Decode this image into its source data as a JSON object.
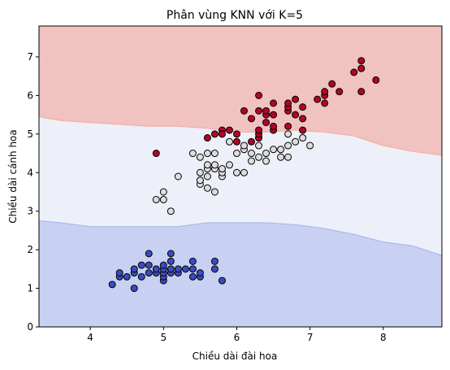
{
  "chart_data": {
    "type": "scatter",
    "title": "Phân vùng KNN với K=5",
    "xlabel": "Chiều dài đài hoa",
    "ylabel": "Chiều dài cánh hoa",
    "xlim": [
      3.3,
      8.8
    ],
    "ylim": [
      0,
      7.8
    ],
    "x_ticks": [
      4,
      5,
      6,
      7,
      8
    ],
    "y_ticks": [
      0,
      1,
      2,
      3,
      4,
      5,
      6,
      7
    ],
    "grid": false,
    "legend": "none",
    "background_regions": {
      "description_colors": {
        "class0": "#c8d1f2",
        "class1": "#edf0f8",
        "class2": "#f0c2c0"
      },
      "boundary_low_high": [
        {
          "x": 3.3,
          "low": 2.75,
          "high": 5.45
        },
        {
          "x": 3.6,
          "low": 2.7,
          "high": 5.35
        },
        {
          "x": 4.0,
          "low": 2.6,
          "high": 5.3
        },
        {
          "x": 4.4,
          "low": 2.6,
          "high": 5.25
        },
        {
          "x": 4.8,
          "low": 2.6,
          "high": 5.2
        },
        {
          "x": 5.2,
          "low": 2.6,
          "high": 5.2
        },
        {
          "x": 5.6,
          "low": 2.7,
          "high": 5.15
        },
        {
          "x": 6.0,
          "low": 2.7,
          "high": 5.05
        },
        {
          "x": 6.4,
          "low": 2.7,
          "high": 5.05
        },
        {
          "x": 6.8,
          "low": 2.65,
          "high": 5.1
        },
        {
          "x": 7.2,
          "low": 2.55,
          "high": 5.05
        },
        {
          "x": 7.6,
          "low": 2.4,
          "high": 4.95
        },
        {
          "x": 8.0,
          "low": 2.2,
          "high": 4.7
        },
        {
          "x": 8.4,
          "low": 2.1,
          "high": 4.55
        },
        {
          "x": 8.8,
          "low": 1.85,
          "high": 4.45
        }
      ]
    },
    "series": [
      {
        "class": 0,
        "color": "#3b4cc0",
        "points": [
          [
            4.3,
            1.1
          ],
          [
            4.4,
            1.3
          ],
          [
            4.4,
            1.4
          ],
          [
            4.5,
            1.3
          ],
          [
            4.6,
            1.0
          ],
          [
            4.6,
            1.4
          ],
          [
            4.6,
            1.5
          ],
          [
            4.7,
            1.3
          ],
          [
            4.7,
            1.6
          ],
          [
            4.8,
            1.4
          ],
          [
            4.8,
            1.6
          ],
          [
            4.8,
            1.9
          ],
          [
            4.9,
            1.4
          ],
          [
            4.9,
            1.5
          ],
          [
            5.0,
            1.2
          ],
          [
            5.0,
            1.3
          ],
          [
            5.0,
            1.4
          ],
          [
            5.0,
            1.5
          ],
          [
            5.0,
            1.6
          ],
          [
            5.1,
            1.4
          ],
          [
            5.1,
            1.5
          ],
          [
            5.1,
            1.7
          ],
          [
            5.1,
            1.9
          ],
          [
            5.2,
            1.4
          ],
          [
            5.2,
            1.5
          ],
          [
            5.3,
            1.5
          ],
          [
            5.4,
            1.3
          ],
          [
            5.4,
            1.5
          ],
          [
            5.4,
            1.7
          ],
          [
            5.5,
            1.3
          ],
          [
            5.5,
            1.4
          ],
          [
            5.7,
            1.5
          ],
          [
            5.7,
            1.7
          ],
          [
            5.8,
            1.2
          ]
        ]
      },
      {
        "class": 1,
        "color": "#dddddd",
        "points": [
          [
            4.9,
            3.3
          ],
          [
            5.0,
            3.3
          ],
          [
            5.0,
            3.5
          ],
          [
            5.1,
            3.0
          ],
          [
            5.2,
            3.9
          ],
          [
            5.4,
            4.5
          ],
          [
            5.5,
            3.7
          ],
          [
            5.5,
            3.8
          ],
          [
            5.5,
            4.0
          ],
          [
            5.5,
            4.4
          ],
          [
            5.6,
            3.6
          ],
          [
            5.6,
            3.9
          ],
          [
            5.6,
            4.1
          ],
          [
            5.6,
            4.2
          ],
          [
            5.6,
            4.5
          ],
          [
            5.7,
            3.5
          ],
          [
            5.7,
            4.1
          ],
          [
            5.7,
            4.2
          ],
          [
            5.7,
            4.5
          ],
          [
            5.8,
            3.9
          ],
          [
            5.8,
            4.0
          ],
          [
            5.8,
            4.1
          ],
          [
            5.9,
            4.2
          ],
          [
            5.9,
            4.8
          ],
          [
            6.0,
            4.0
          ],
          [
            6.0,
            4.5
          ],
          [
            6.1,
            4.0
          ],
          [
            6.1,
            4.6
          ],
          [
            6.1,
            4.7
          ],
          [
            6.2,
            4.3
          ],
          [
            6.2,
            4.5
          ],
          [
            6.3,
            4.4
          ],
          [
            6.3,
            4.7
          ],
          [
            6.3,
            4.9
          ],
          [
            6.4,
            4.3
          ],
          [
            6.4,
            4.5
          ],
          [
            6.5,
            4.6
          ],
          [
            6.6,
            4.4
          ],
          [
            6.6,
            4.6
          ],
          [
            6.7,
            4.4
          ],
          [
            6.7,
            4.7
          ],
          [
            6.7,
            5.0
          ],
          [
            6.8,
            4.8
          ],
          [
            6.9,
            4.9
          ],
          [
            7.0,
            4.7
          ]
        ]
      },
      {
        "class": 2,
        "color": "#b40426",
        "points": [
          [
            4.9,
            4.5
          ],
          [
            5.6,
            4.9
          ],
          [
            5.7,
            5.0
          ],
          [
            5.8,
            5.1
          ],
          [
            5.9,
            5.1
          ],
          [
            6.0,
            4.8
          ],
          [
            6.0,
            5.0
          ],
          [
            6.1,
            5.6
          ],
          [
            6.2,
            4.8
          ],
          [
            6.2,
            5.4
          ],
          [
            6.3,
            4.9
          ],
          [
            6.3,
            5.0
          ],
          [
            6.3,
            5.1
          ],
          [
            6.3,
            5.6
          ],
          [
            6.3,
            6.0
          ],
          [
            6.4,
            5.3
          ],
          [
            6.4,
            5.5
          ],
          [
            6.4,
            5.6
          ],
          [
            6.5,
            5.1
          ],
          [
            6.5,
            5.2
          ],
          [
            6.5,
            5.5
          ],
          [
            6.5,
            5.8
          ],
          [
            6.7,
            5.2
          ],
          [
            6.7,
            5.6
          ],
          [
            6.7,
            5.7
          ],
          [
            6.7,
            5.8
          ],
          [
            6.8,
            5.5
          ],
          [
            6.8,
            5.9
          ],
          [
            6.9,
            5.1
          ],
          [
            6.9,
            5.4
          ],
          [
            6.9,
            5.7
          ],
          [
            7.1,
            5.9
          ],
          [
            7.2,
            5.8
          ],
          [
            7.2,
            6.0
          ],
          [
            7.2,
            6.1
          ],
          [
            7.3,
            6.3
          ],
          [
            7.4,
            6.1
          ],
          [
            7.6,
            6.6
          ],
          [
            7.7,
            6.1
          ],
          [
            7.7,
            6.7
          ],
          [
            7.7,
            6.9
          ],
          [
            7.9,
            6.4
          ],
          [
            5.8,
            5.0
          ]
        ]
      }
    ]
  }
}
